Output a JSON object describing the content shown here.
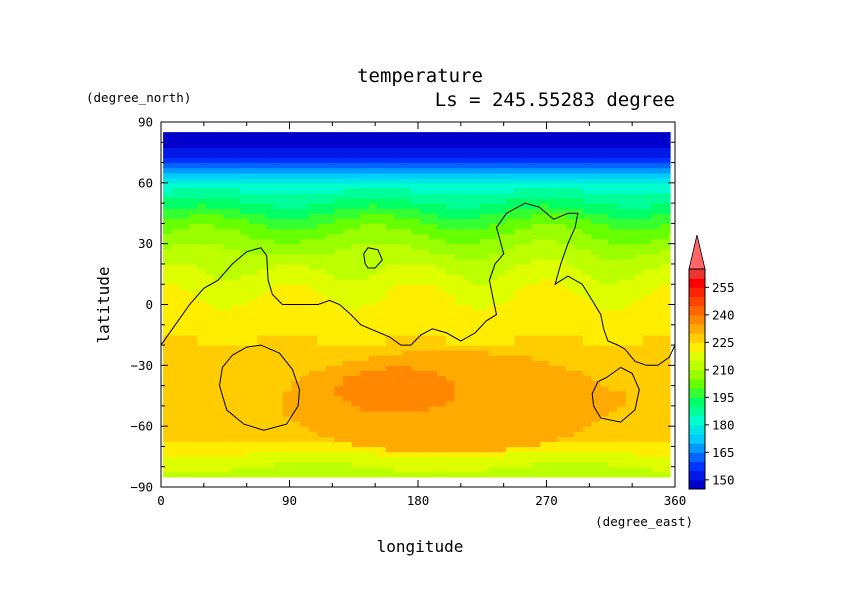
{
  "chart_data": {
    "type": "heatmap",
    "title": "temperature",
    "subtitle": "Ls = 245.55283 degree",
    "xlabel": "longitude",
    "ylabel": "latitude",
    "x_unit": "(degree_east)",
    "y_unit": "(degree_north)",
    "xlim": [
      0,
      360
    ],
    "ylim": [
      -90,
      90
    ],
    "x_ticks": [
      0,
      90,
      180,
      270,
      360
    ],
    "y_ticks": [
      90,
      60,
      30,
      0,
      -30,
      -60,
      -90
    ],
    "y_tick_labels": [
      "90",
      "60",
      "30",
      "0",
      "−30",
      "−60",
      "−90"
    ],
    "grid": false,
    "colorbar": {
      "labels": [
        255,
        240,
        225,
        210,
        195,
        180,
        165,
        150
      ],
      "levels": [
        145,
        150,
        155,
        160,
        165,
        170,
        175,
        180,
        185,
        190,
        195,
        200,
        205,
        210,
        215,
        220,
        225,
        230,
        235,
        240,
        245,
        250,
        255,
        260
      ],
      "extend": "max",
      "colors": [
        "#0000cc",
        "#0019e6",
        "#0033ff",
        "#0066ff",
        "#0099ff",
        "#00ccff",
        "#00e6e6",
        "#00ffcc",
        "#00ff99",
        "#00ff66",
        "#33ff33",
        "#66ff00",
        "#99ff00",
        "#bbff00",
        "#ddff00",
        "#ffee00",
        "#ffcc00",
        "#ffaa00",
        "#ff8800",
        "#ff6600",
        "#ff4400",
        "#ff2200",
        "#ff0000",
        "#ee3333"
      ],
      "extend_color": "#ff6666"
    },
    "latitude_profile": {
      "lat": [
        85,
        80,
        75,
        70,
        65,
        60,
        55,
        50,
        45,
        40,
        35,
        30,
        25,
        20,
        15,
        10,
        5,
        0,
        -5,
        -10,
        -15,
        -20,
        -25,
        -30,
        -35,
        -40,
        -45,
        -50,
        -55,
        -60,
        -65,
        -70,
        -75,
        -80,
        -85
      ],
      "temperature": [
        148,
        149,
        152,
        160,
        170,
        180,
        186,
        191,
        196,
        201,
        205,
        208,
        211,
        214,
        216,
        218,
        220,
        221,
        222,
        224,
        225,
        225,
        226,
        227,
        228,
        229,
        229,
        229,
        229,
        228,
        226,
        223,
        219,
        215,
        212
      ]
    },
    "warm_regions": [
      {
        "lon_center": 200,
        "lat_center": -48,
        "lon_halfwidth": 115,
        "lat_halfwidth": 25,
        "temperature": 232
      },
      {
        "lon_center": 165,
        "lat_center": -42,
        "lon_halfwidth": 42,
        "lat_halfwidth": 11,
        "temperature": 238
      },
      {
        "lon_center": 315,
        "lat_center": -47,
        "lon_halfwidth": 10,
        "lat_halfwidth": 5,
        "temperature": 233
      }
    ],
    "contours": [
      {
        "name": "coastline",
        "points": [
          [
            0,
            -20
          ],
          [
            10,
            -10
          ],
          [
            20,
            0
          ],
          [
            30,
            8
          ],
          [
            40,
            12
          ],
          [
            50,
            20
          ],
          [
            60,
            26
          ],
          [
            70,
            28
          ],
          [
            74,
            24
          ],
          [
            75,
            12
          ],
          [
            78,
            5
          ],
          [
            85,
            0
          ],
          [
            100,
            0
          ],
          [
            110,
            0
          ],
          [
            118,
            2
          ],
          [
            125,
            0
          ],
          [
            133,
            -5
          ],
          [
            140,
            -10
          ],
          [
            150,
            -13
          ],
          [
            160,
            -16
          ],
          [
            168,
            -20
          ],
          [
            175,
            -20
          ],
          [
            182,
            -15
          ],
          [
            190,
            -12
          ],
          [
            200,
            -14
          ],
          [
            210,
            -18
          ],
          [
            220,
            -14
          ],
          [
            228,
            -8
          ],
          [
            235,
            -5
          ],
          [
            232,
            5
          ],
          [
            230,
            12
          ],
          [
            234,
            20
          ],
          [
            240,
            25
          ],
          [
            235,
            38
          ],
          [
            242,
            45
          ],
          [
            255,
            50
          ],
          [
            265,
            48
          ],
          [
            275,
            42
          ],
          [
            285,
            45
          ],
          [
            292,
            45
          ],
          [
            290,
            38
          ],
          [
            285,
            30
          ],
          [
            280,
            20
          ],
          [
            276,
            10
          ],
          [
            285,
            14
          ],
          [
            295,
            10
          ],
          [
            302,
            2
          ],
          [
            308,
            -5
          ],
          [
            310,
            -12
          ],
          [
            313,
            -18
          ],
          [
            320,
            -20
          ],
          [
            325,
            -22
          ],
          [
            332,
            -28
          ],
          [
            340,
            -30
          ],
          [
            348,
            -30
          ],
          [
            356,
            -26
          ],
          [
            360,
            -20
          ]
        ]
      },
      {
        "name": "island",
        "points": [
          [
            143,
            20
          ],
          [
            142,
            25
          ],
          [
            145,
            28
          ],
          [
            152,
            27
          ],
          [
            155,
            22
          ],
          [
            150,
            18
          ],
          [
            145,
            18
          ],
          [
            143,
            20
          ]
        ]
      },
      {
        "name": "west-basin",
        "points": [
          [
            50,
            -25
          ],
          [
            60,
            -21
          ],
          [
            70,
            -20
          ],
          [
            83,
            -24
          ],
          [
            92,
            -32
          ],
          [
            97,
            -42
          ],
          [
            96,
            -50
          ],
          [
            88,
            -59
          ],
          [
            72,
            -62
          ],
          [
            58,
            -59
          ],
          [
            46,
            -52
          ],
          [
            41,
            -40
          ],
          [
            43,
            -31
          ],
          [
            50,
            -25
          ]
        ]
      },
      {
        "name": "east-basin",
        "points": [
          [
            312,
            -36
          ],
          [
            322,
            -31
          ],
          [
            330,
            -34
          ],
          [
            335,
            -42
          ],
          [
            332,
            -52
          ],
          [
            322,
            -58
          ],
          [
            308,
            -56
          ],
          [
            303,
            -50
          ],
          [
            302,
            -44
          ],
          [
            306,
            -38
          ],
          [
            312,
            -36
          ]
        ]
      }
    ]
  }
}
